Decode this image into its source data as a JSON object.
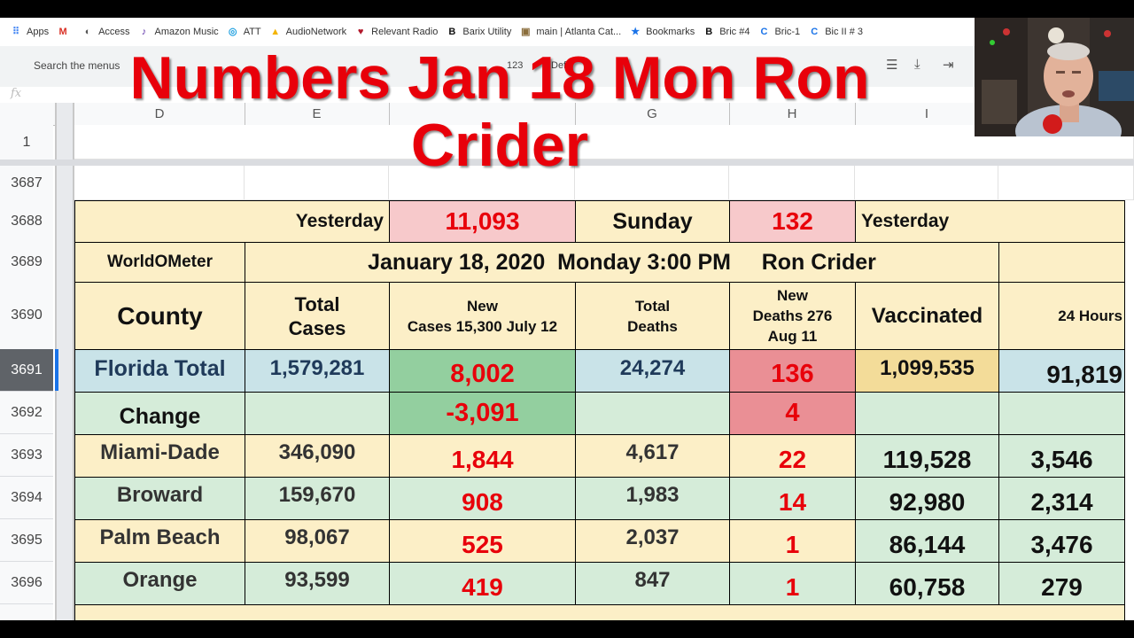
{
  "bookmarks": [
    {
      "label": "Apps",
      "icon": "apps-grid-icon",
      "color": "#4285f4"
    },
    {
      "label": "",
      "icon": "gmail-icon",
      "color": "#d93025"
    },
    {
      "label": "Access",
      "icon": "access-icon",
      "color": "#555555"
    },
    {
      "label": "Amazon Music",
      "icon": "amazon-music-icon",
      "color": "#5a2ea6"
    },
    {
      "label": "ATT",
      "icon": "att-icon",
      "color": "#1fa0e0"
    },
    {
      "label": "AudioNetwork",
      "icon": "audionetwork-icon",
      "color": "#f4b400"
    },
    {
      "label": "Relevant Radio",
      "icon": "relevant-radio-icon",
      "color": "#b2182b"
    },
    {
      "label": "Barix Utility",
      "icon": "barix-icon",
      "color": "#111111"
    },
    {
      "label": "main | Atlanta Cat...",
      "icon": "atlanta-cat-icon",
      "color": "#8a6d3b"
    },
    {
      "label": "Bookmarks",
      "icon": "star-icon",
      "color": "#1a73e8"
    },
    {
      "label": "Bric #4",
      "icon": "bric-icon",
      "color": "#111111"
    },
    {
      "label": "Bric-1",
      "icon": "bric-1-icon",
      "color": "#1a73e8"
    },
    {
      "label": "Bic II # 3",
      "icon": "bric-3-icon",
      "color": "#1a73e8"
    }
  ],
  "menubar": {
    "search_placeholder": "Search the menus",
    "zoom": "123",
    "font": "Defa"
  },
  "formula": {
    "fx": "fx"
  },
  "columns": [
    "D",
    "E",
    "F",
    "G",
    "H",
    "I",
    ""
  ],
  "rows": {
    "r1": "1",
    "r3687": "3687",
    "r3688": "3688",
    "r3689": "3689",
    "r3690": "3690",
    "r3691": "3691",
    "r3692": "3692",
    "r3693": "3693",
    "r3694": "3694",
    "r3695": "3695",
    "r3696": "3696"
  },
  "overlay": {
    "line1": "Numbers Jan 18 Mon Ron",
    "line2": "Crider"
  },
  "sheet": {
    "row3688": {
      "yesterday_label": "Yesterday",
      "yesterday_cases": "11,093",
      "day": "Sunday",
      "yesterday_deaths": "132",
      "yesterday_label2": "Yesterday"
    },
    "row3689": {
      "source": "WorldOMeter",
      "date_line": "January 18, 2020  Monday 3:00 PM     Ron Crider"
    },
    "row3690": {
      "county": "County",
      "total_cases": "Total\nCases",
      "new_cases": "New\nCases 15,300 July 12",
      "total_deaths": "Total\nDeaths",
      "new_deaths": "New\nDeaths 276\nAug 11",
      "vaccinated": "Vaccinated",
      "hours24": "24 Hours"
    },
    "row3691": {
      "county": "Florida Total",
      "total_cases": "1,579,281",
      "new_cases": "8,002",
      "total_deaths": "24,274",
      "new_deaths": "136",
      "vaccinated": "1,099,535",
      "hours24": "91,819"
    },
    "row3692": {
      "county": "Change",
      "new_cases": "-3,091",
      "new_deaths": "4"
    },
    "counties": [
      {
        "county": "Miami-Dade",
        "total_cases": "346,090",
        "new_cases": "1,844",
        "total_deaths": "4,617",
        "new_deaths": "22",
        "vaccinated": "119,528",
        "hours24": "3,546"
      },
      {
        "county": "Broward",
        "total_cases": "159,670",
        "new_cases": "908",
        "total_deaths": "1,983",
        "new_deaths": "14",
        "vaccinated": "92,980",
        "hours24": "2,314"
      },
      {
        "county": "Palm Beach",
        "total_cases": "98,067",
        "new_cases": "525",
        "total_deaths": "2,037",
        "new_deaths": "1",
        "vaccinated": "86,144",
        "hours24": "3,476"
      },
      {
        "county": "Orange",
        "total_cases": "93,599",
        "new_cases": "419",
        "total_deaths": "847",
        "new_deaths": "1",
        "vaccinated": "60,758",
        "hours24": "279"
      }
    ]
  }
}
